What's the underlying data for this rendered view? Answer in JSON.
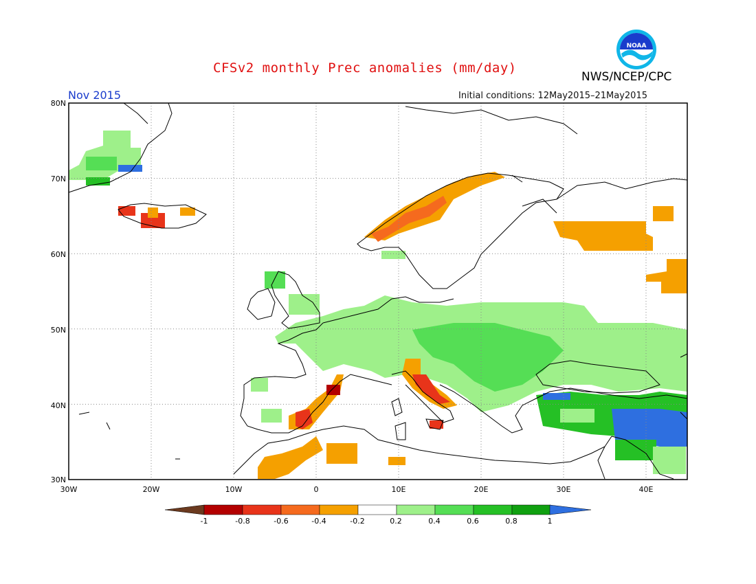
{
  "header": {
    "title": "CFSv2 monthly Prec anomalies (mm/day)",
    "agency": "NWS/NCEP/CPC",
    "logo_text": "NOAA",
    "month": "Nov 2015",
    "initial_conditions": "Initial conditions: 12May2015–21May2015"
  },
  "map": {
    "lat_labels": [
      "80N",
      "70N",
      "60N",
      "50N",
      "40N",
      "30N"
    ],
    "lon_labels": [
      "30W",
      "20W",
      "10W",
      "0",
      "10E",
      "20E",
      "30E",
      "40E"
    ],
    "lon_range": [
      -30,
      45
    ],
    "lat_range": [
      30,
      80
    ]
  },
  "colorbar": {
    "labels": [
      "-1",
      "-0.8",
      "-0.6",
      "-0.4",
      "-0.2",
      "0.2",
      "0.4",
      "0.6",
      "0.8",
      "1"
    ],
    "colors": [
      "#6b3a1f",
      "#b30000",
      "#e8341a",
      "#f56a1e",
      "#f5a000",
      "#ffffff",
      "#9ef08a",
      "#55de55",
      "#25c025",
      "#10a010",
      "#2e6fe0"
    ]
  },
  "anomaly_colors": {
    "minus_0_4": "#f5a000",
    "minus_0_6": "#f56a1e",
    "minus_0_8": "#e8341a",
    "minus_1": "#b30000",
    "plus_0_2": "#9ef08a",
    "plus_0_4": "#55de55",
    "plus_0_6": "#25c025",
    "plus_0_8": "#10a010",
    "plus_1": "#2e6fe0"
  }
}
